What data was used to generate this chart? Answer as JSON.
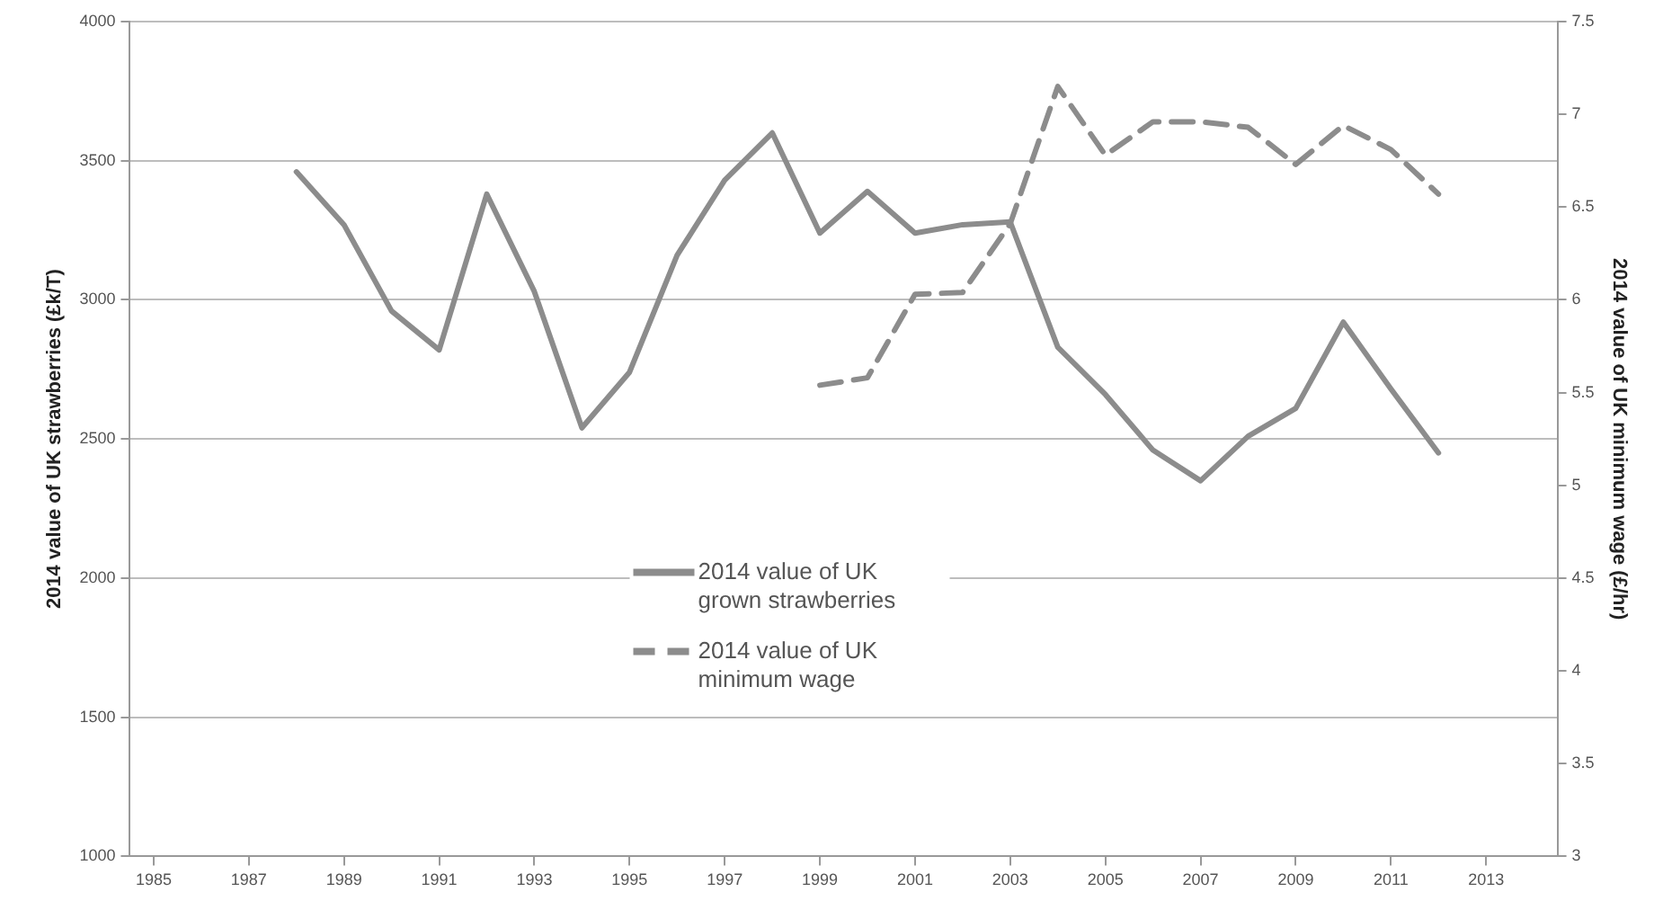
{
  "chart_data": {
    "type": "line",
    "ylabel": "2014 value of UK strawberries (£k/T)",
    "y2label": "2014 value of UK minimum wage (£/hr)",
    "x": [
      1988,
      1989,
      1990,
      1991,
      1992,
      1993,
      1994,
      1995,
      1996,
      1997,
      1998,
      1999,
      2000,
      2001,
      2002,
      2003,
      2004,
      2005,
      2006,
      2007,
      2008,
      2009,
      2010,
      2011,
      2012
    ],
    "series": [
      {
        "name": "2014 value of UK grown strawberries",
        "color": "#8c8c8c",
        "line_style": "solid",
        "values": [
          3460,
          3270,
          2960,
          2820,
          3380,
          3030,
          2540,
          2740,
          3160,
          3430,
          3600,
          3240,
          3390,
          3240,
          3270,
          3280,
          2830,
          2660,
          2460,
          2350,
          2510,
          2610,
          2920,
          2680,
          2450
        ]
      },
      {
        "name": "2014 value of UK minimum wage",
        "color": "#8c8c8c",
        "line_style": "dashed",
        "axis": "y2",
        "values": [
          null,
          null,
          null,
          null,
          null,
          null,
          null,
          null,
          null,
          null,
          null,
          5.54,
          5.58,
          6.03,
          6.04,
          6.41,
          7.15,
          6.78,
          6.96,
          6.96,
          6.93,
          6.73,
          6.94,
          6.81,
          6.57
        ]
      }
    ],
    "xlim": [
      1984.5,
      2014.5
    ],
    "xticks": [
      1985,
      1987,
      1989,
      1991,
      1993,
      1995,
      1997,
      1999,
      2001,
      2003,
      2005,
      2007,
      2009,
      2011,
      2013
    ],
    "ylim": [
      1000,
      4000
    ],
    "yticks": [
      1000,
      1500,
      2000,
      2500,
      3000,
      3500,
      4000
    ],
    "y2lim": [
      3,
      7.5
    ],
    "y2ticks": [
      3,
      3.5,
      4,
      4.5,
      5,
      5.5,
      6,
      6.5,
      7,
      7.5
    ],
    "grid": "y",
    "legend": "bottom",
    "marker": "none"
  }
}
